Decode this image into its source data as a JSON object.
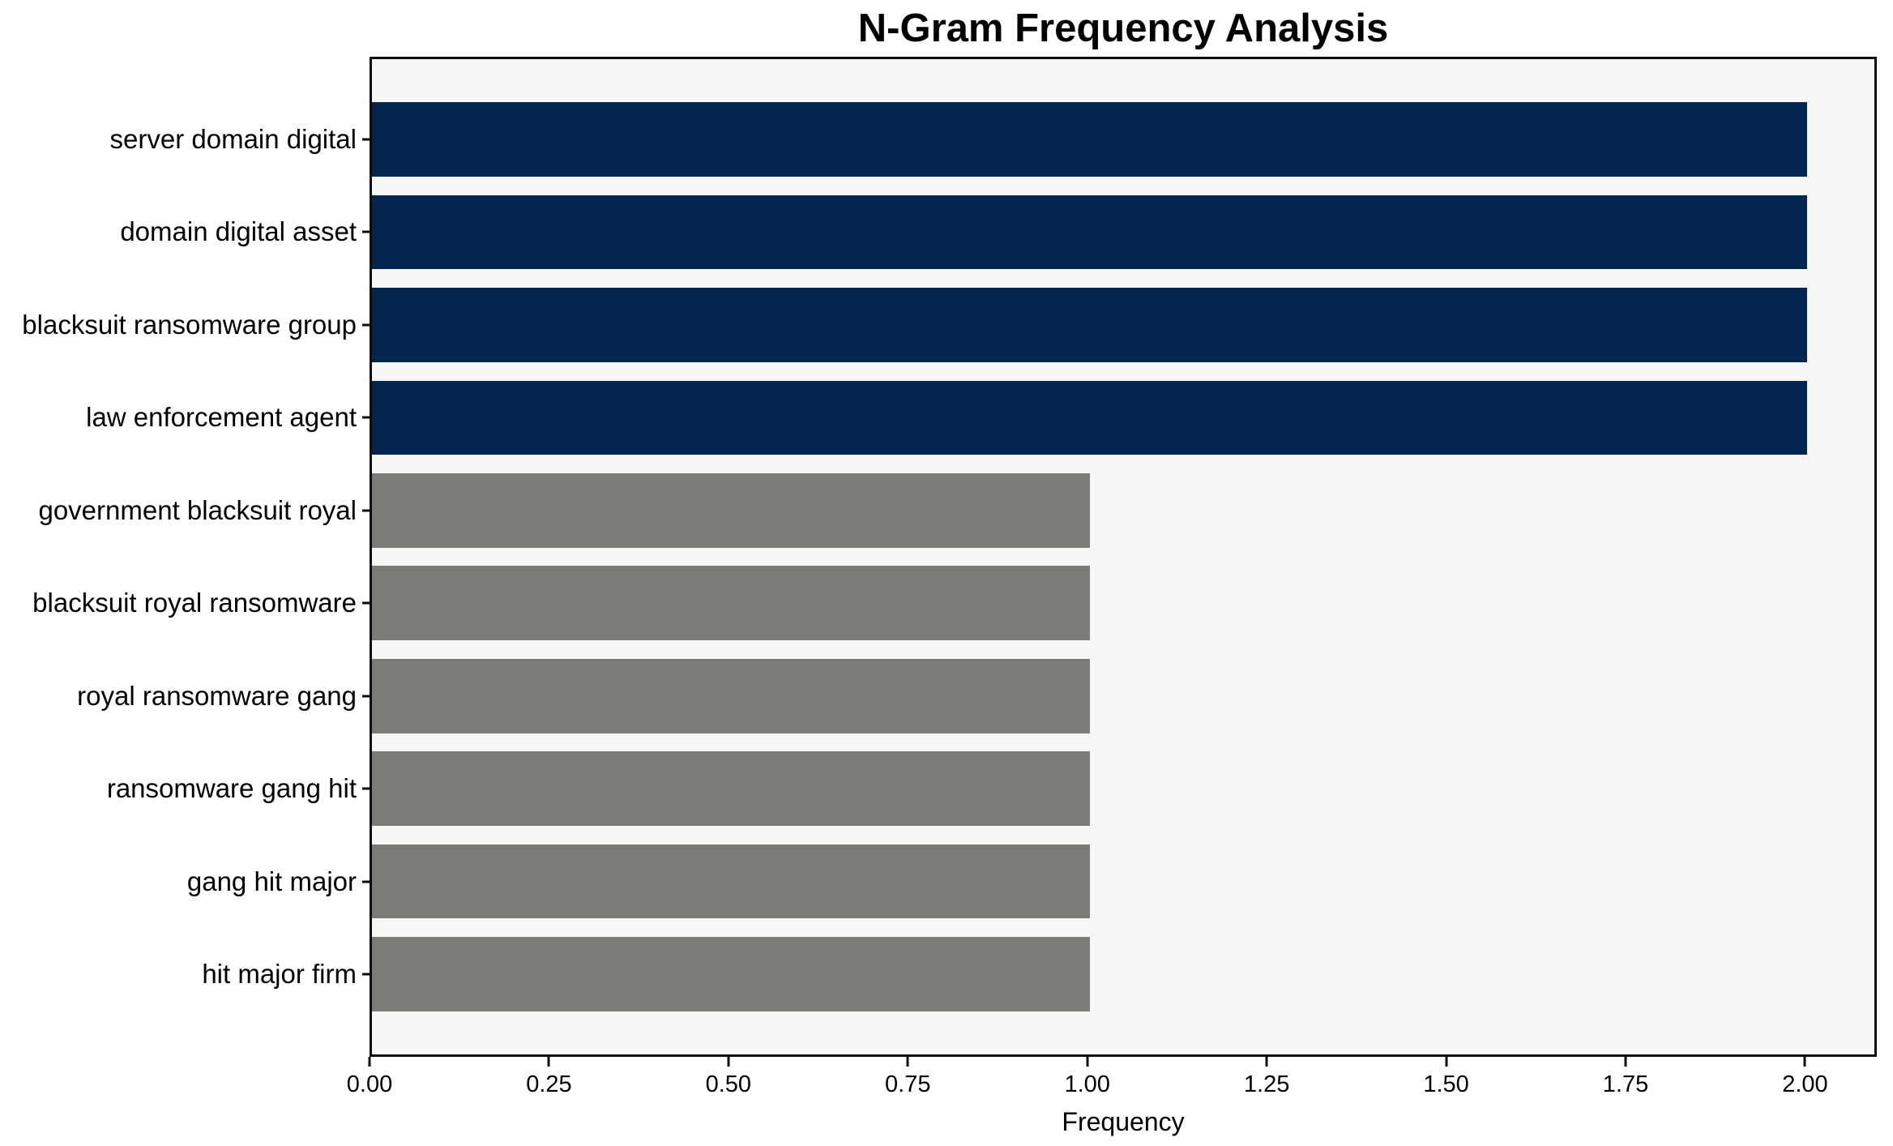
{
  "chart_data": {
    "type": "bar",
    "orientation": "horizontal",
    "title": "N-Gram Frequency Analysis",
    "xlabel": "Frequency",
    "ylabel": "",
    "categories": [
      "server domain digital",
      "domain digital asset",
      "blacksuit ransomware group",
      "law enforcement agent",
      "government blacksuit royal",
      "blacksuit royal ransomware",
      "royal ransomware gang",
      "ransomware gang hit",
      "gang hit major",
      "hit major firm"
    ],
    "values": [
      2,
      2,
      2,
      2,
      1,
      1,
      1,
      1,
      1,
      1
    ],
    "bar_colors": [
      "#03254e",
      "#03254e",
      "#03254e",
      "#03254e",
      "#7b7b78",
      "#7b7b78",
      "#7b7b78",
      "#7b7b78",
      "#7b7b78",
      "#7b7b78"
    ],
    "xticks": [
      "0.00",
      "0.25",
      "0.50",
      "0.75",
      "1.00",
      "1.25",
      "1.50",
      "1.75",
      "2.00"
    ],
    "xtick_values": [
      0,
      0.25,
      0.5,
      0.75,
      1.0,
      1.25,
      1.5,
      1.75,
      2.0
    ],
    "xlim": [
      0,
      2.1
    ],
    "grid": false,
    "legend": null,
    "colors": {
      "highlight_bar": "#03254e",
      "default_bar": "#7b7b78",
      "plot_background": "#f7f7f6",
      "figure_background": "#ffffff",
      "spine": "#0d0d0d",
      "text": "#000000"
    }
  }
}
